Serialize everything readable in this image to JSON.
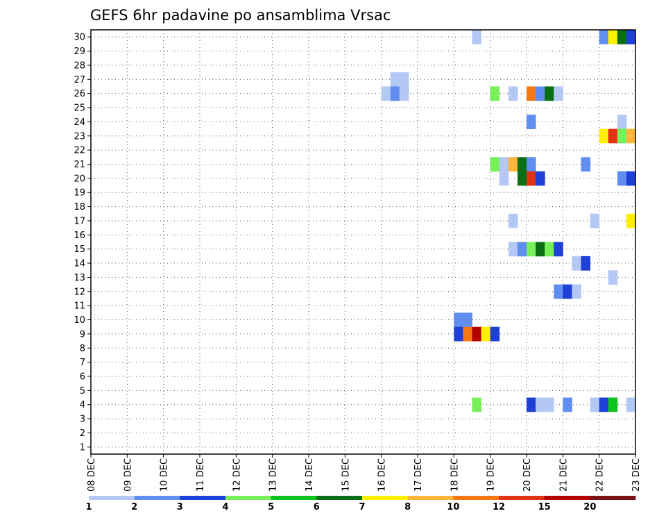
{
  "chart_data": {
    "type": "heatmap",
    "title": "GEFS 6hr padavine po ansamblima Vrsac",
    "xlabel": "",
    "ylabel": "",
    "x_ticks": [
      "08 DEC",
      "09 DEC",
      "10 DEC",
      "11 DEC",
      "12 DEC",
      "13 DEC",
      "14 DEC",
      "15 DEC",
      "16 DEC",
      "17 DEC",
      "18 DEC",
      "19 DEC",
      "20 DEC",
      "21 DEC",
      "22 DEC",
      "23 DEC"
    ],
    "y_ticks": [
      1,
      2,
      3,
      4,
      5,
      6,
      7,
      8,
      9,
      10,
      11,
      12,
      13,
      14,
      15,
      16,
      17,
      18,
      19,
      20,
      21,
      22,
      23,
      24,
      25,
      26,
      27,
      28,
      29,
      30
    ],
    "x_range_days": [
      0,
      15
    ],
    "y_range_members": [
      0.5,
      30.5
    ],
    "time_step_days": 0.25,
    "legend_breaks": [
      "1",
      "2",
      "3",
      "4",
      "5",
      "6",
      "7",
      "8",
      "10",
      "12",
      "15",
      "20"
    ],
    "legend_colors": [
      "#b4c8f5",
      "#5f8ef0",
      "#1e3fd8",
      "#78f05a",
      "#0fc31e",
      "#0a6e14",
      "#fff000",
      "#ffb43c",
      "#f57814",
      "#e13214",
      "#b40000",
      "#781414"
    ],
    "cells": [
      {
        "member": 30,
        "start": 10.5,
        "cls": 0
      },
      {
        "member": 30,
        "start": 14.0,
        "cls": 1
      },
      {
        "member": 30,
        "start": 14.25,
        "cls": 6
      },
      {
        "member": 30,
        "start": 14.5,
        "cls": 5
      },
      {
        "member": 30,
        "start": 14.75,
        "cls": 2
      },
      {
        "member": 27,
        "start": 8.25,
        "cls": 0
      },
      {
        "member": 27,
        "start": 8.5,
        "cls": 0
      },
      {
        "member": 26,
        "start": 8.0,
        "cls": 0
      },
      {
        "member": 26,
        "start": 8.25,
        "cls": 1
      },
      {
        "member": 26,
        "start": 8.5,
        "cls": 0
      },
      {
        "member": 26,
        "start": 11.0,
        "cls": 3
      },
      {
        "member": 26,
        "start": 11.5,
        "cls": 0
      },
      {
        "member": 26,
        "start": 12.0,
        "cls": 8
      },
      {
        "member": 26,
        "start": 12.25,
        "cls": 1
      },
      {
        "member": 26,
        "start": 12.5,
        "cls": 5
      },
      {
        "member": 26,
        "start": 12.75,
        "cls": 0
      },
      {
        "member": 24,
        "start": 12.0,
        "cls": 1
      },
      {
        "member": 24,
        "start": 14.5,
        "cls": 0
      },
      {
        "member": 23,
        "start": 14.0,
        "cls": 6
      },
      {
        "member": 23,
        "start": 14.25,
        "cls": 9
      },
      {
        "member": 23,
        "start": 14.5,
        "cls": 3
      },
      {
        "member": 23,
        "start": 14.75,
        "cls": 7
      },
      {
        "member": 21,
        "start": 11.0,
        "cls": 3
      },
      {
        "member": 21,
        "start": 11.25,
        "cls": 0
      },
      {
        "member": 21,
        "start": 11.5,
        "cls": 7
      },
      {
        "member": 21,
        "start": 11.75,
        "cls": 5
      },
      {
        "member": 21,
        "start": 12.0,
        "cls": 1
      },
      {
        "member": 21,
        "start": 13.5,
        "cls": 1
      },
      {
        "member": 20,
        "start": 11.25,
        "cls": 0
      },
      {
        "member": 20,
        "start": 11.75,
        "cls": 5
      },
      {
        "member": 20,
        "start": 12.0,
        "cls": 9
      },
      {
        "member": 20,
        "start": 12.25,
        "cls": 2
      },
      {
        "member": 20,
        "start": 14.5,
        "cls": 1
      },
      {
        "member": 20,
        "start": 14.75,
        "cls": 2
      },
      {
        "member": 17,
        "start": 11.5,
        "cls": 0
      },
      {
        "member": 17,
        "start": 13.75,
        "cls": 0
      },
      {
        "member": 17,
        "start": 14.75,
        "cls": 6
      },
      {
        "member": 15,
        "start": 11.5,
        "cls": 0
      },
      {
        "member": 15,
        "start": 11.75,
        "cls": 1
      },
      {
        "member": 15,
        "start": 12.0,
        "cls": 3
      },
      {
        "member": 15,
        "start": 12.25,
        "cls": 5
      },
      {
        "member": 15,
        "start": 12.5,
        "cls": 3
      },
      {
        "member": 15,
        "start": 12.75,
        "cls": 2
      },
      {
        "member": 14,
        "start": 13.25,
        "cls": 0
      },
      {
        "member": 14,
        "start": 13.5,
        "cls": 2
      },
      {
        "member": 13,
        "start": 14.25,
        "cls": 0
      },
      {
        "member": 12,
        "start": 12.75,
        "cls": 1
      },
      {
        "member": 12,
        "start": 13.0,
        "cls": 2
      },
      {
        "member": 12,
        "start": 13.25,
        "cls": 0
      },
      {
        "member": 10,
        "start": 10.0,
        "cls": 1
      },
      {
        "member": 10,
        "start": 10.25,
        "cls": 1
      },
      {
        "member": 9,
        "start": 10.0,
        "cls": 2
      },
      {
        "member": 9,
        "start": 10.25,
        "cls": 8
      },
      {
        "member": 9,
        "start": 10.5,
        "cls": 10
      },
      {
        "member": 9,
        "start": 10.75,
        "cls": 6
      },
      {
        "member": 9,
        "start": 11.0,
        "cls": 2
      },
      {
        "member": 4,
        "start": 10.5,
        "cls": 3
      },
      {
        "member": 4,
        "start": 12.0,
        "cls": 2
      },
      {
        "member": 4,
        "start": 12.25,
        "cls": 0
      },
      {
        "member": 4,
        "start": 12.5,
        "cls": 0
      },
      {
        "member": 4,
        "start": 13.0,
        "cls": 1
      },
      {
        "member": 4,
        "start": 13.75,
        "cls": 0
      },
      {
        "member": 4,
        "start": 14.0,
        "cls": 2
      },
      {
        "member": 4,
        "start": 14.25,
        "cls": 4
      },
      {
        "member": 4,
        "start": 14.75,
        "cls": 0
      }
    ]
  }
}
